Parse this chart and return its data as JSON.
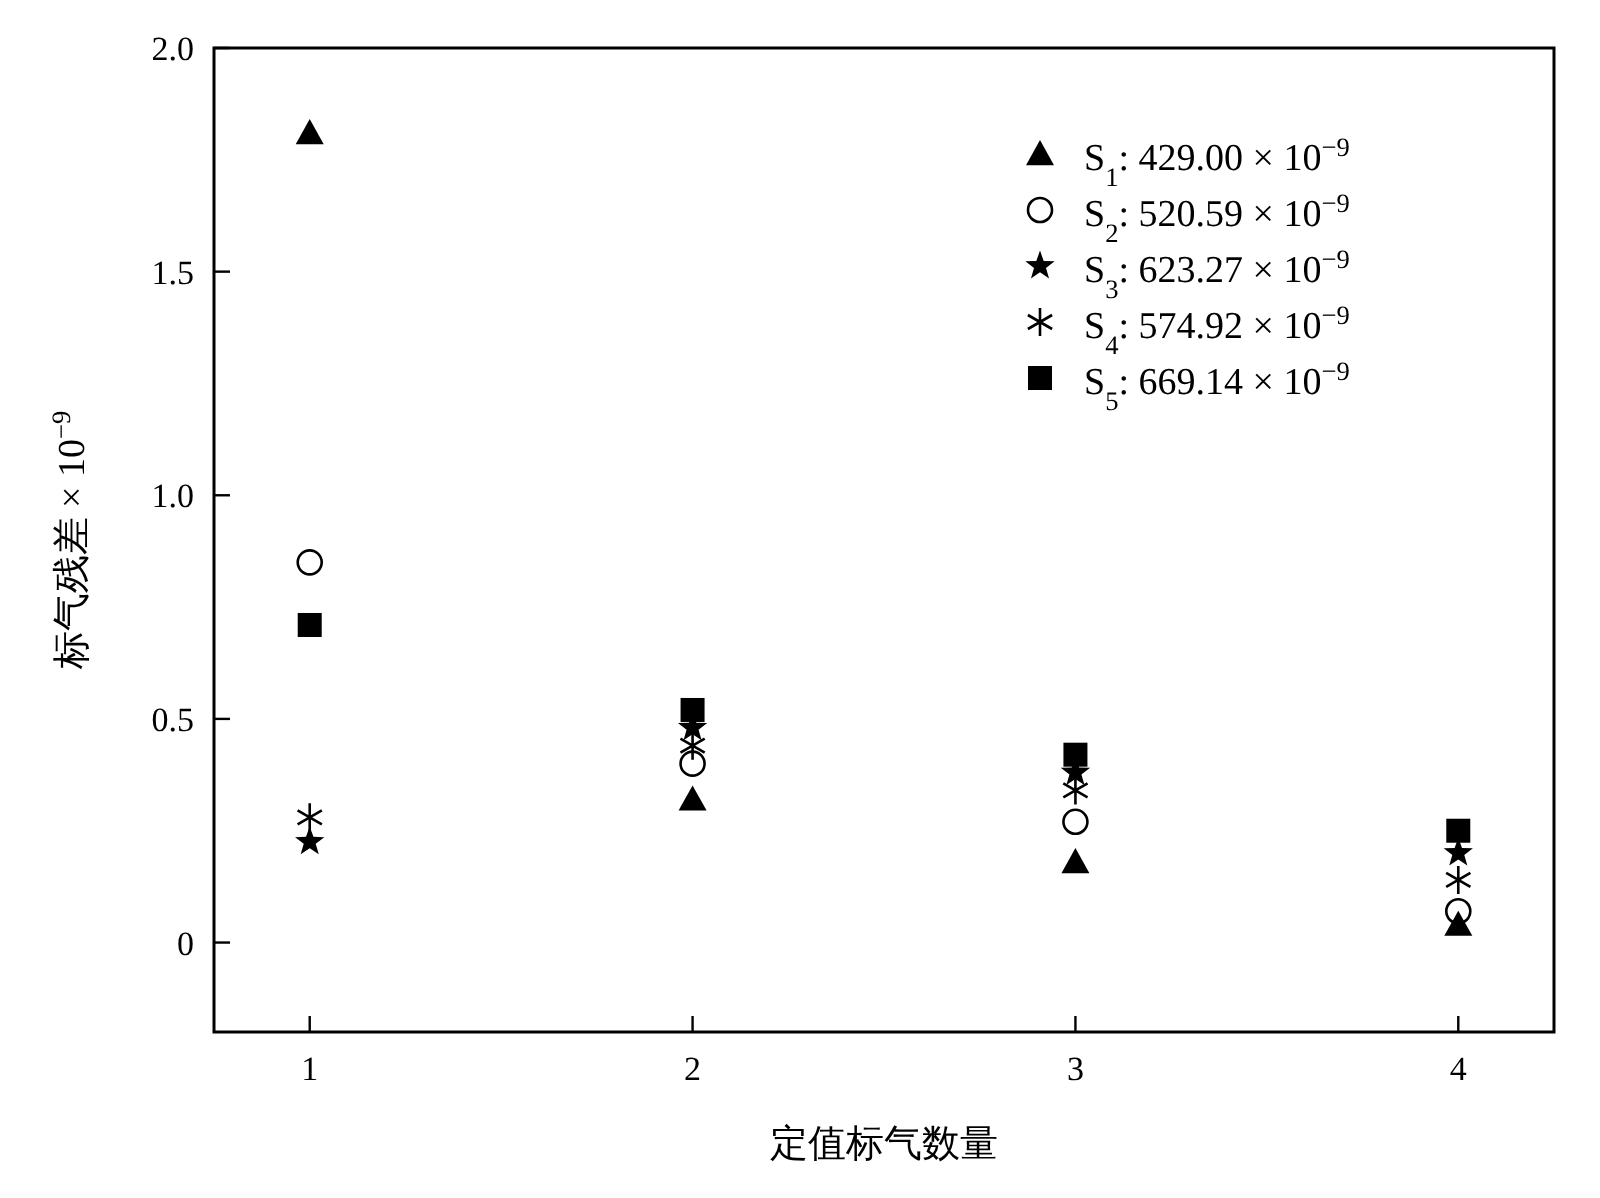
{
  "chart_data": {
    "type": "scatter",
    "xlabel": "定值标气数量",
    "ylabel": "标气残差 × 10$^{−9}$",
    "x": [
      1,
      2,
      3,
      4
    ],
    "xlim": [
      0.75,
      4.25
    ],
    "xticks": [
      1,
      2,
      3,
      4
    ],
    "ylim": [
      -0.2,
      2.0
    ],
    "yticks": [
      0,
      {
        "value": 0.5,
        "label": "0.5"
      },
      {
        "value": 1,
        "label": "1.0"
      },
      {
        "value": 1.5,
        "label": "1.5"
      },
      {
        "value": 2,
        "label": "2.0"
      }
    ],
    "legend": "top right",
    "grid": false,
    "series": [
      {
        "name": "S$_{1}$: 429.00 × 10$^{−9}$",
        "color": "#000000",
        "marker": "triangle",
        "values": [
          1.81,
          0.32,
          0.18,
          0.04
        ]
      },
      {
        "name": "S$_{2}$: 520.59 × 10$^{−9}$",
        "color": "#000000",
        "marker": "circle",
        "values": [
          0.85,
          0.4,
          0.27,
          0.07
        ]
      },
      {
        "name": "S$_{3}$: 623.27 × 10$^{−9}$",
        "color": "#000000",
        "marker": "star",
        "values": [
          0.225,
          0.48,
          0.38,
          0.2
        ]
      },
      {
        "name": "S$_{4}$: 574.92 × 10$^{−9}$",
        "color": "#000000",
        "marker": "cross",
        "values": [
          0.28,
          0.44,
          0.34,
          0.14
        ]
      },
      {
        "name": "S$_{5}$: 669.14 × 10$^{−9}$",
        "color": "#000000",
        "marker": "square",
        "values": [
          0.71,
          0.52,
          0.42,
          0.25
        ]
      }
    ]
  }
}
